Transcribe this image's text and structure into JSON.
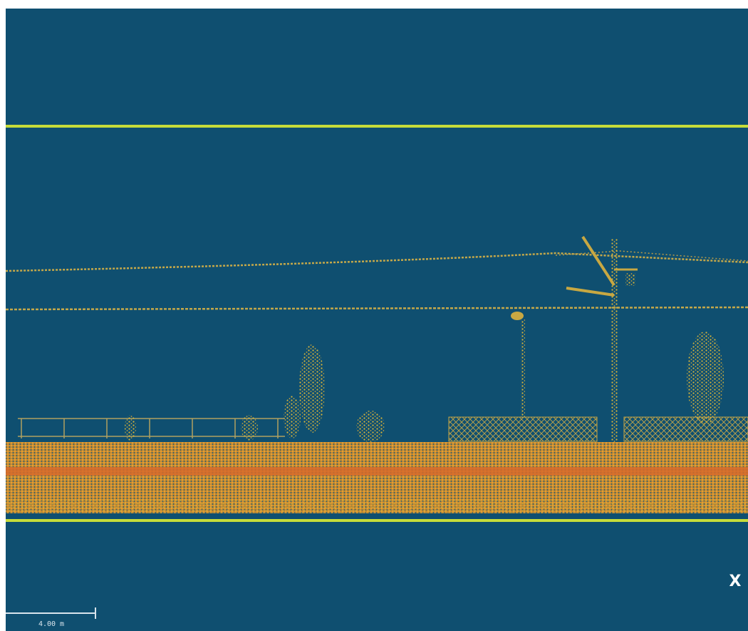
{
  "viewer": {
    "axis_label": "X",
    "scale_bar": {
      "label": "4.00 m"
    }
  }
}
